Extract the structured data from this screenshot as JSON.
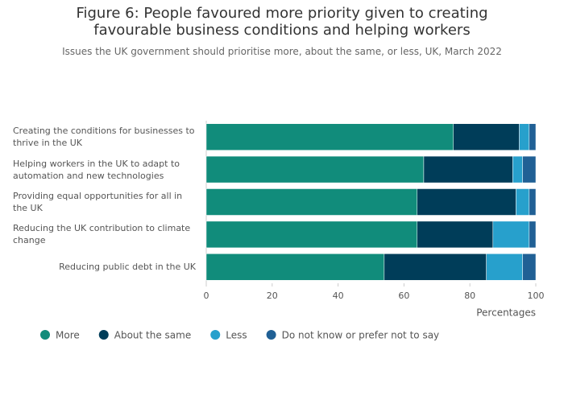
{
  "chart_data": {
    "type": "stacked-bar-horizontal",
    "title": "Figure 6: People favoured more priority given to creating favourable business conditions and helping workers",
    "subtitle": "Issues the UK government should prioritise more, about the same, or less, UK, March 2022",
    "categories": [
      "Creating the conditions for businesses to thrive in the UK",
      "Helping workers in the UK to adapt to automation and new technologies",
      "Providing equal opportunities for all in the UK",
      "Reducing the UK contribution to climate change",
      "Reducing public debt in the UK"
    ],
    "series": [
      {
        "name": "More",
        "color": "#118c7b",
        "values": [
          75,
          66,
          64,
          64,
          54
        ]
      },
      {
        "name": "About the same",
        "color": "#003d59",
        "values": [
          20,
          27,
          30,
          23,
          31
        ]
      },
      {
        "name": "Less",
        "color": "#27a0cc",
        "values": [
          3,
          3,
          4,
          11,
          11
        ]
      },
      {
        "name": "Do not know or prefer not to say",
        "color": "#206095",
        "values": [
          2,
          4,
          2,
          2,
          4
        ]
      }
    ],
    "xlabel": "Percentages",
    "xlim": [
      0,
      100
    ],
    "xticks": [
      0,
      20,
      40,
      60,
      80,
      100
    ]
  }
}
